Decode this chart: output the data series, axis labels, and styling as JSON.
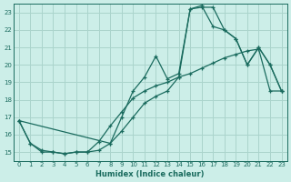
{
  "xlabel": "Humidex (Indice chaleur)",
  "bg_color": "#cceee8",
  "grid_color": "#aad4cc",
  "line_color": "#1a6b5e",
  "xlim": [
    -0.5,
    23.5
  ],
  "ylim": [
    14.5,
    23.5
  ],
  "xticks": [
    0,
    1,
    2,
    3,
    4,
    5,
    6,
    7,
    8,
    9,
    10,
    11,
    12,
    13,
    14,
    15,
    16,
    17,
    18,
    19,
    20,
    21,
    22,
    23
  ],
  "yticks": [
    15,
    16,
    17,
    18,
    19,
    20,
    21,
    22,
    23
  ],
  "line1_x": [
    0,
    1,
    2,
    3,
    4,
    5,
    6,
    7,
    8,
    9,
    10,
    11,
    12,
    13,
    14,
    15,
    16,
    17,
    18,
    19,
    20,
    21,
    22,
    23
  ],
  "line1_y": [
    16.8,
    15.5,
    15.1,
    15.0,
    14.9,
    15.0,
    15.0,
    15.1,
    15.5,
    17.0,
    18.5,
    19.3,
    20.5,
    19.2,
    19.5,
    23.2,
    23.3,
    23.3,
    22.0,
    21.5,
    20.0,
    21.0,
    20.0,
    18.5
  ],
  "line2_x": [
    0,
    1,
    2,
    3,
    4,
    5,
    6,
    7,
    8,
    9,
    10,
    11,
    12,
    13,
    14,
    15,
    16,
    17,
    18,
    19,
    20,
    21,
    22,
    23
  ],
  "line2_y": [
    16.8,
    15.5,
    15.0,
    15.0,
    14.9,
    15.0,
    15.0,
    15.6,
    16.5,
    17.3,
    18.1,
    18.5,
    18.8,
    19.0,
    19.3,
    19.5,
    19.8,
    20.1,
    20.4,
    20.6,
    20.8,
    20.9,
    18.5,
    18.5
  ],
  "line3_x": [
    0,
    8,
    9,
    10,
    11,
    12,
    13,
    14,
    15,
    16,
    17,
    18,
    19,
    20,
    21,
    22,
    23
  ],
  "line3_y": [
    16.8,
    15.5,
    16.2,
    17.0,
    17.8,
    18.2,
    18.5,
    19.3,
    23.2,
    23.4,
    22.2,
    22.0,
    21.5,
    20.0,
    21.0,
    20.0,
    18.5
  ]
}
